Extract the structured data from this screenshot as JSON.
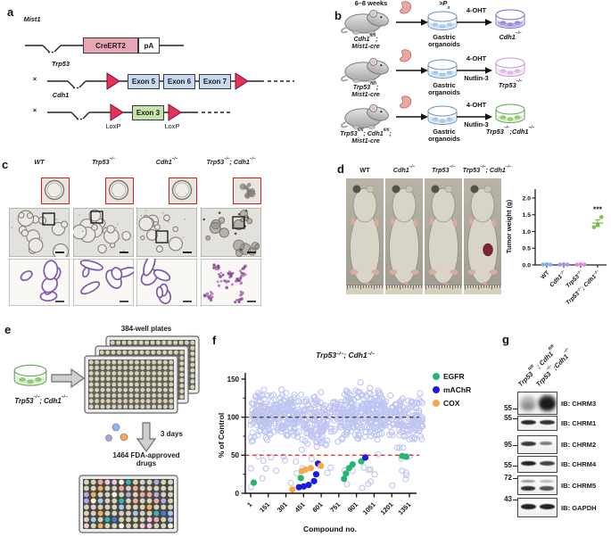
{
  "colors": {
    "ink": "#1a1a1a",
    "loxp_red": "#e73258",
    "cre_pink": "#e9a6b4",
    "exon_blue": "#c8daf0",
    "exon_green": "#c6e3ab",
    "screen_bg_circle": "#bfc5f1",
    "egfr_green": "#26b573",
    "machr_blue": "#1b1ce0",
    "cox_orange": "#f6a84f",
    "ctrl_line": "#4a4a4a",
    "cutoff_line": "#ee3333",
    "well_beige": "#d9d3b6",
    "well_palette": [
      "#a8c8f0",
      "#4878d0",
      "#f0a8a0",
      "#f0b060",
      "#b8a8e0",
      "#30b8b8",
      "#f0c8d8",
      "#fdf6e0"
    ],
    "drug_dots": [
      "#8ab8ee",
      "#b59ce2",
      "#f2aa5a"
    ]
  },
  "dish_colors": {
    "organoid": {
      "fill": "#cfe4f6",
      "rim": "#6b93bb",
      "blob": "#a5cbe8"
    },
    "cdh1": {
      "fill": "#b9b1ea",
      "rim": "#776dc9",
      "blob": "#9a90dd"
    },
    "trp53": {
      "fill": "#f0def1",
      "rim": "#c498cc",
      "blob": "#ddb9e2"
    },
    "dko": {
      "fill": "#d8eec9",
      "rim": "#63a258",
      "blob": "#8fcc74"
    }
  },
  "panel_a": {
    "letter": "a",
    "gene1": "Mist1",
    "cre_box": "CreERT2",
    "pa_box": "pA",
    "cross": "×",
    "gene2": "Trp53",
    "exon5": "Exon 5",
    "exon6": "Exon 6",
    "exon7": "Exon 7",
    "gene3": "Cdh1",
    "exon3": "Exon 3",
    "loxp_left": "LoxP",
    "loxp_right": "LoxP"
  },
  "panel_b": {
    "letter": "b",
    "age_label": "6–8 weeks",
    "passage_label": ">P_{3}",
    "organoid_line1": "Gastric",
    "organoid_line2": "organoids",
    "rows": [
      {
        "genotype1": "Cdh1^{fl/fl};",
        "genotype2": "Mist1-cre",
        "treat_top": "4-OHT",
        "treat_bottom": "",
        "result": "Cdh1^{−/−}",
        "result_dish": "cdh1"
      },
      {
        "genotype1": "Trp53^{fl/fl};",
        "genotype2": "Mist1-cre",
        "treat_top": "4-OHT",
        "treat_bottom": "Nutlin-3",
        "result": "Trp53^{−/−}",
        "result_dish": "trp53"
      },
      {
        "genotype1": "Trp53^{fl/fl}; Cdh1^{fl/fl};",
        "genotype2": "Mist1-cre",
        "treat_top": "4-OHT",
        "treat_bottom": "Nutlin-3",
        "result": "Trp53^{−/−};Cdh1^{−/−}",
        "result_dish": "dko"
      }
    ]
  },
  "panel_c": {
    "letter": "c",
    "columns": [
      {
        "title": "WT",
        "style": "cystic"
      },
      {
        "title": "Trp53^{−/−}",
        "style": "cystic"
      },
      {
        "title": "Cdh1^{−/−}",
        "style": "cystic"
      },
      {
        "title": "Trp53^{−/−}; Cdh1^{−/−}",
        "style": "solid"
      }
    ]
  },
  "panel_d": {
    "letter": "d",
    "photo_labels": [
      "WT",
      "Cdh1^{−/−}",
      "Trp53^{−/−}",
      "Trp53^{−/−}; Cdh1^{−/−}"
    ]
  },
  "panel_e": {
    "letter": "e",
    "dish_label": "Trp53^{−/−}; Cdh1^{−/−}",
    "plates_label": "384-well plates",
    "duration_label": "3 days",
    "drug_line1": "1464 FDA-approved",
    "drug_line2": "drugs"
  },
  "panel_f": {
    "letter": "f"
  },
  "panel_g": {
    "letter": "g",
    "lane1_label": "Trp53^{fl/fl} ; Cdh1^{fl/fl}",
    "lane2_label": "Trp53^{−/−};Cdh1^{−/−}",
    "blots": [
      {
        "marker": "55",
        "label": "IB: CHRM3",
        "pattern": "smear",
        "l1": 0.32,
        "l2": 0.9
      },
      {
        "marker": "55",
        "label": "IB: CHRM1",
        "pattern": "band",
        "l1": 0.92,
        "l2": 0.88
      },
      {
        "marker": "95",
        "label": "IB: CHRM2",
        "pattern": "band",
        "l1": 0.85,
        "l2": 0.55,
        "thin2": true
      },
      {
        "marker": "55",
        "label": "IB: CHRM4",
        "pattern": "band",
        "l1": 0.95,
        "l2": 0.8
      },
      {
        "marker": "72",
        "label": "IB: CHRM5",
        "pattern": "doublet",
        "l1": 0.88,
        "l2": 0.72
      },
      {
        "marker": "43",
        "label": "IB: GAPDH",
        "pattern": "band",
        "l1": 0.95,
        "l2": 0.95,
        "thick": true
      }
    ]
  },
  "chart_data": [
    {
      "id": "tumor-weight",
      "type": "scatter",
      "ylabel": "Tumor weight (g)",
      "ylim": [
        0,
        2.0
      ],
      "yticks": [
        "0.0",
        "0.5",
        "1.0",
        "1.5",
        "2.0"
      ],
      "categories": [
        "WT",
        "Cdh1^{−/−}",
        "Trp53^{−/−}",
        "Trp53^{−/−}; Cdh1^{−/−}"
      ],
      "series": [
        {
          "name": "WT",
          "color": "#85aef2",
          "values": [
            0.01,
            0.02,
            0.01
          ]
        },
        {
          "name": "Cdh1−/−",
          "color": "#a897e8",
          "values": [
            0.01,
            0.02,
            0.01
          ]
        },
        {
          "name": "Trp53−/−",
          "color": "#ee82e0",
          "values": [
            0.01,
            0.02,
            0.01
          ]
        },
        {
          "name": "Trp53−/−; Cdh1−/−",
          "color": "#7fc240",
          "values": [
            1.13,
            1.2,
            1.43
          ],
          "mean": 1.25,
          "sem": 0.1
        }
      ],
      "significance": "***"
    },
    {
      "id": "drug-screen",
      "type": "scatter",
      "title": "Trp53^{−/−}; Cdh1^{−/−}",
      "xlabel": "Compound no.",
      "ylabel": "% of Control",
      "xlim": [
        1,
        1464
      ],
      "ylim": [
        0,
        150
      ],
      "xticks": [
        1,
        151,
        301,
        451,
        601,
        751,
        901,
        1051,
        1201,
        1351
      ],
      "yticks": [
        0,
        50,
        100,
        150
      ],
      "hlines": [
        {
          "y": 100,
          "color": "#4a4a4a",
          "style": "dashed"
        },
        {
          "y": 50,
          "color": "#ee3333",
          "style": "dashed"
        }
      ],
      "legend": [
        {
          "name": "EGFR",
          "color": "#26b573"
        },
        {
          "name": "mAChR",
          "color": "#1b1ce0"
        },
        {
          "name": "COX",
          "color": "#f6a84f"
        }
      ],
      "background": {
        "marker": "open-circle",
        "color": "#bfc5f1",
        "count": 860,
        "seed": 11,
        "y_band_center": 100,
        "y_band_halfwidth": 46,
        "below_fraction": 0.05,
        "gaps": [
          {
            "x": [
              660,
              770
            ],
            "y_below": 95,
            "drop": 0.75
          },
          {
            "x": [
              1120,
              1265
            ],
            "y_below": 88,
            "drop": 0.55
          }
        ]
      },
      "series": [
        {
          "name": "EGFR",
          "color": "#26b573",
          "points": [
            [
              27,
              14
            ],
            [
              428,
              20
            ],
            [
              795,
              19
            ],
            [
              812,
              26
            ],
            [
              838,
              33
            ],
            [
              868,
              38
            ],
            [
              942,
              42
            ],
            [
              1290,
              49
            ],
            [
              1324,
              48
            ]
          ]
        },
        {
          "name": "mAChR",
          "color": "#1b1ce0",
          "points": [
            [
              412,
              8
            ],
            [
              452,
              9
            ],
            [
              494,
              11
            ],
            [
              540,
              16
            ],
            [
              558,
              25
            ],
            [
              574,
              39
            ],
            [
              976,
              47
            ]
          ]
        },
        {
          "name": "COX",
          "color": "#f6a84f",
          "points": [
            [
              356,
              5
            ],
            [
              436,
              29
            ],
            [
              466,
              31
            ],
            [
              512,
              33
            ],
            [
              597,
              36
            ]
          ]
        }
      ]
    }
  ]
}
